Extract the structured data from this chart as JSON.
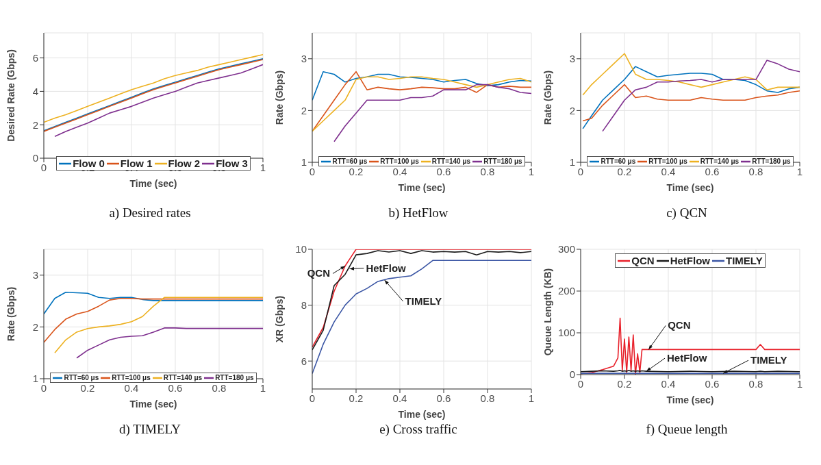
{
  "chart_data": [
    {
      "type": "line",
      "xlabel": "Time (sec)",
      "ylabel": "Desired Rate (Gbps)",
      "annotations": [
        "a) Desired rates"
      ],
      "x": [
        0,
        0.05,
        0.1,
        0.15,
        0.2,
        0.25,
        0.3,
        0.35,
        0.4,
        0.45,
        0.5,
        0.55,
        0.6,
        0.65,
        0.7,
        0.75,
        0.8,
        0.85,
        0.9,
        0.95,
        1
      ],
      "xlim": [
        0,
        1
      ],
      "xticks": [
        0,
        0.2,
        0.4,
        0.6,
        0.8,
        1
      ],
      "ylim": [
        0,
        7.5
      ],
      "yticks": [
        0,
        2,
        4,
        6
      ],
      "grid": true,
      "legend": "bottom",
      "series": [
        {
          "name": "Flow 0",
          "color": "#0072bd",
          "values": [
            1.65,
            1.9,
            2.15,
            2.4,
            2.65,
            2.9,
            3.15,
            3.4,
            3.65,
            3.9,
            4.15,
            4.35,
            4.55,
            4.75,
            4.95,
            5.15,
            5.35,
            5.5,
            5.65,
            5.8,
            5.95
          ]
        },
        {
          "name": "Flow 1",
          "color": "#d95319",
          "values": [
            1.6,
            1.85,
            2.1,
            2.35,
            2.6,
            2.85,
            3.1,
            3.35,
            3.6,
            3.85,
            4.1,
            4.3,
            4.5,
            4.7,
            4.9,
            5.1,
            5.3,
            5.45,
            5.6,
            5.75,
            5.9
          ]
        },
        {
          "name": "Flow 2",
          "color": "#edb120",
          "values": [
            2.15,
            2.4,
            2.6,
            2.85,
            3.1,
            3.35,
            3.6,
            3.85,
            4.1,
            4.3,
            4.5,
            4.75,
            4.95,
            5.1,
            5.25,
            5.45,
            5.6,
            5.75,
            5.9,
            6.05,
            6.2
          ]
        },
        {
          "name": "Flow 3",
          "color": "#7e2f8e",
          "values": [
            null,
            1.3,
            1.6,
            1.85,
            2.1,
            2.4,
            2.7,
            2.9,
            3.1,
            3.35,
            3.6,
            3.8,
            4.0,
            4.25,
            4.5,
            4.65,
            4.8,
            4.95,
            5.1,
            5.35,
            5.6
          ]
        }
      ]
    },
    {
      "type": "line",
      "xlabel": "Time (sec)",
      "ylabel": "Rate (Gbps)",
      "annotations": [
        "b) HetFlow"
      ],
      "x": [
        0,
        0.05,
        0.1,
        0.15,
        0.2,
        0.25,
        0.3,
        0.35,
        0.4,
        0.45,
        0.5,
        0.55,
        0.6,
        0.65,
        0.7,
        0.75,
        0.8,
        0.85,
        0.9,
        0.95,
        1
      ],
      "xlim": [
        0,
        1
      ],
      "xticks": [
        0,
        0.2,
        0.4,
        0.6,
        0.8,
        1
      ],
      "ylim": [
        1,
        3.5
      ],
      "yticks": [
        1,
        2,
        3
      ],
      "grid": true,
      "legend": "bottom",
      "series": [
        {
          "name": "RTT=60 μs",
          "color": "#0072bd",
          "values": [
            2.2,
            2.75,
            2.7,
            2.55,
            2.62,
            2.65,
            2.7,
            2.7,
            2.65,
            2.64,
            2.62,
            2.6,
            2.55,
            2.58,
            2.6,
            2.52,
            2.48,
            2.5,
            2.55,
            2.58,
            2.57
          ]
        },
        {
          "name": "RTT=100 μs",
          "color": "#d95319",
          "values": [
            1.6,
            1.9,
            2.2,
            2.5,
            2.75,
            2.4,
            2.45,
            2.42,
            2.4,
            2.42,
            2.45,
            2.44,
            2.42,
            2.42,
            2.45,
            2.35,
            2.5,
            2.45,
            2.47,
            2.45,
            2.45
          ]
        },
        {
          "name": "RTT=140 μs",
          "color": "#edb120",
          "values": [
            1.6,
            1.8,
            2.0,
            2.2,
            2.6,
            2.65,
            2.65,
            2.6,
            2.62,
            2.65,
            2.65,
            2.62,
            2.6,
            2.55,
            2.5,
            2.45,
            2.5,
            2.55,
            2.6,
            2.62,
            2.55
          ]
        },
        {
          "name": "RTT=180 μs",
          "color": "#7e2f8e",
          "values": [
            null,
            null,
            1.4,
            1.7,
            1.95,
            2.2,
            2.2,
            2.2,
            2.2,
            2.25,
            2.25,
            2.28,
            2.4,
            2.4,
            2.4,
            2.5,
            2.5,
            2.45,
            2.42,
            2.35,
            2.33
          ]
        }
      ]
    },
    {
      "type": "line",
      "xlabel": "Time (sec)",
      "ylabel": "Rate (Gbps)",
      "annotations": [
        "c) QCN"
      ],
      "x": [
        0.01,
        0.05,
        0.1,
        0.15,
        0.2,
        0.25,
        0.3,
        0.35,
        0.4,
        0.45,
        0.5,
        0.55,
        0.6,
        0.65,
        0.7,
        0.75,
        0.8,
        0.85,
        0.9,
        0.95,
        1
      ],
      "xlim": [
        0,
        1
      ],
      "xticks": [
        0,
        0.2,
        0.4,
        0.6,
        0.8,
        1
      ],
      "ylim": [
        1,
        3.5
      ],
      "yticks": [
        1,
        2,
        3
      ],
      "grid": true,
      "legend": "bottom",
      "series": [
        {
          "name": "RTT=60 μs",
          "color": "#0072bd",
          "values": [
            1.65,
            1.9,
            2.2,
            2.4,
            2.6,
            2.85,
            2.75,
            2.65,
            2.68,
            2.7,
            2.72,
            2.72,
            2.7,
            2.6,
            2.6,
            2.58,
            2.5,
            2.38,
            2.35,
            2.42,
            2.45
          ]
        },
        {
          "name": "RTT=100 μs",
          "color": "#d95319",
          "values": [
            1.8,
            1.85,
            2.1,
            2.3,
            2.5,
            2.25,
            2.28,
            2.22,
            2.2,
            2.2,
            2.2,
            2.25,
            2.22,
            2.2,
            2.2,
            2.2,
            2.25,
            2.28,
            2.3,
            2.35,
            2.38
          ]
        },
        {
          "name": "RTT=140 μs",
          "color": "#edb120",
          "values": [
            2.3,
            2.5,
            2.7,
            2.9,
            3.1,
            2.7,
            2.6,
            2.6,
            2.58,
            2.55,
            2.5,
            2.45,
            2.5,
            2.55,
            2.6,
            2.65,
            2.6,
            2.4,
            2.45,
            2.45,
            2.45
          ]
        },
        {
          "name": "RTT=180 μs",
          "color": "#7e2f8e",
          "values": [
            null,
            null,
            1.6,
            1.9,
            2.2,
            2.4,
            2.45,
            2.55,
            2.55,
            2.57,
            2.58,
            2.6,
            2.55,
            2.6,
            2.6,
            2.6,
            2.6,
            2.97,
            2.9,
            2.8,
            2.75
          ]
        }
      ]
    },
    {
      "type": "line",
      "xlabel": "Time (sec)",
      "ylabel": "Rate (Gbps)",
      "annotations": [
        "d) TIMELY"
      ],
      "x": [
        0,
        0.05,
        0.1,
        0.15,
        0.2,
        0.25,
        0.3,
        0.35,
        0.4,
        0.45,
        0.5,
        0.55,
        0.6,
        0.65,
        0.7,
        0.75,
        0.8,
        0.85,
        0.9,
        0.95,
        1
      ],
      "xlim": [
        0,
        1
      ],
      "xticks": [
        0,
        0.2,
        0.4,
        0.6,
        0.8,
        1
      ],
      "ylim": [
        1,
        3.5
      ],
      "yticks": [
        1,
        2,
        3
      ],
      "grid": true,
      "legend": "bottom",
      "series": [
        {
          "name": "RTT=60 μs",
          "color": "#0072bd",
          "values": [
            2.25,
            2.55,
            2.67,
            2.66,
            2.65,
            2.57,
            2.55,
            2.57,
            2.57,
            2.53,
            2.51,
            2.51,
            2.51,
            2.51,
            2.51,
            2.51,
            2.51,
            2.51,
            2.51,
            2.51,
            2.51
          ]
        },
        {
          "name": "RTT=100 μs",
          "color": "#d95319",
          "values": [
            1.7,
            1.95,
            2.15,
            2.25,
            2.3,
            2.4,
            2.52,
            2.55,
            2.55,
            2.54,
            2.54,
            2.54,
            2.54,
            2.54,
            2.54,
            2.54,
            2.54,
            2.54,
            2.54,
            2.54,
            2.54
          ]
        },
        {
          "name": "RTT=140 μs",
          "color": "#edb120",
          "values": [
            null,
            1.5,
            1.75,
            1.9,
            1.97,
            2.0,
            2.02,
            2.05,
            2.1,
            2.2,
            2.4,
            2.57,
            2.57,
            2.57,
            2.57,
            2.57,
            2.57,
            2.57,
            2.57,
            2.57,
            2.57
          ]
        },
        {
          "name": "RTT=180 μs",
          "color": "#7e2f8e",
          "values": [
            null,
            null,
            null,
            1.4,
            1.55,
            1.65,
            1.75,
            1.8,
            1.82,
            1.83,
            1.9,
            1.98,
            1.98,
            1.97,
            1.97,
            1.97,
            1.97,
            1.97,
            1.97,
            1.97,
            1.97
          ]
        }
      ]
    },
    {
      "type": "line",
      "xlabel": "Time (sec)",
      "ylabel": "XR (Gbps)",
      "x": [
        0,
        0.05,
        0.1,
        0.15,
        0.2,
        0.25,
        0.3,
        0.35,
        0.4,
        0.45,
        0.5,
        0.55,
        0.6,
        0.65,
        0.7,
        0.75,
        0.8,
        0.85,
        0.9,
        0.95,
        1
      ],
      "xlim": [
        0,
        1
      ],
      "xticks": [
        0,
        0.2,
        0.4,
        0.6,
        0.8,
        1
      ],
      "ylim": [
        5,
        10
      ],
      "yticks": [
        6,
        8,
        10
      ],
      "grid": true,
      "annotations": [
        "e) Cross traffic",
        {
          "text": "QCN",
          "x": 0.15,
          "y": 9.4
        },
        {
          "text": "HetFlow",
          "x": 0.17,
          "y": 9.3
        },
        {
          "text": "TIMELY",
          "x": 0.33,
          "y": 8.9
        }
      ],
      "series": [
        {
          "color": "#e8202a",
          "values": [
            6.5,
            7.2,
            8.5,
            9.4,
            10,
            10,
            10,
            10,
            10,
            10,
            10,
            10,
            10,
            10,
            10,
            10,
            10,
            10,
            10,
            10,
            10
          ]
        },
        {
          "color": "#1a1a1a",
          "values": [
            6.4,
            7.1,
            8.7,
            9.1,
            9.8,
            9.85,
            9.95,
            9.9,
            9.95,
            9.85,
            9.95,
            9.9,
            9.92,
            9.9,
            9.92,
            9.8,
            9.92,
            9.9,
            9.92,
            9.88,
            9.92
          ]
        },
        {
          "color": "#3a55a4",
          "values": [
            5.55,
            6.6,
            7.4,
            8.0,
            8.4,
            8.6,
            8.85,
            8.95,
            9.0,
            9.05,
            9.3,
            9.6,
            9.6,
            9.6,
            9.6,
            9.6,
            9.6,
            9.6,
            9.6,
            9.6,
            9.6
          ]
        }
      ]
    },
    {
      "type": "line",
      "xlabel": "Time (sec)",
      "ylabel": "Queue Length (KB)",
      "x": [
        0,
        0.05,
        0.1,
        0.15,
        0.17,
        0.18,
        0.19,
        0.2,
        0.21,
        0.22,
        0.23,
        0.24,
        0.25,
        0.26,
        0.27,
        0.28,
        0.3,
        0.4,
        0.5,
        0.6,
        0.7,
        0.8,
        0.82,
        0.84,
        0.9,
        1
      ],
      "xlim": [
        0,
        1
      ],
      "xticks": [
        0,
        0.2,
        0.4,
        0.6,
        0.8,
        1
      ],
      "ylim": [
        0,
        300
      ],
      "yticks": [
        0,
        100,
        200,
        300
      ],
      "grid": true,
      "legend": "top",
      "annotations": [
        "f) Queue length",
        {
          "text": "QCN",
          "x": 0.31,
          "y": 60
        },
        {
          "text": "HetFlow",
          "x": 0.3,
          "y": 8
        },
        {
          "text": "TIMELY",
          "x": 0.65,
          "y": 3
        }
      ],
      "series": [
        {
          "name": "QCN",
          "color": "#e8202a",
          "values": [
            2,
            5,
            12,
            20,
            40,
            135,
            10,
            85,
            5,
            90,
            10,
            95,
            0,
            50,
            5,
            60,
            60,
            60,
            60,
            60,
            60,
            60,
            72,
            60,
            60,
            60
          ]
        },
        {
          "name": "HetFlow",
          "color": "#1a1a1a",
          "values": [
            7,
            8,
            9,
            8,
            9,
            10,
            8,
            9,
            8,
            10,
            8,
            9,
            8,
            9,
            8,
            9,
            8,
            7,
            8,
            7,
            8,
            7,
            8,
            7,
            8,
            7
          ]
        },
        {
          "name": "TIMELY",
          "color": "#3a55a4",
          "values": [
            3,
            3,
            3,
            3,
            3,
            3,
            3,
            3,
            3,
            3,
            3,
            3,
            3,
            3,
            3,
            3,
            3,
            3,
            3,
            3,
            3,
            3,
            3,
            3,
            3,
            3
          ]
        }
      ]
    }
  ]
}
